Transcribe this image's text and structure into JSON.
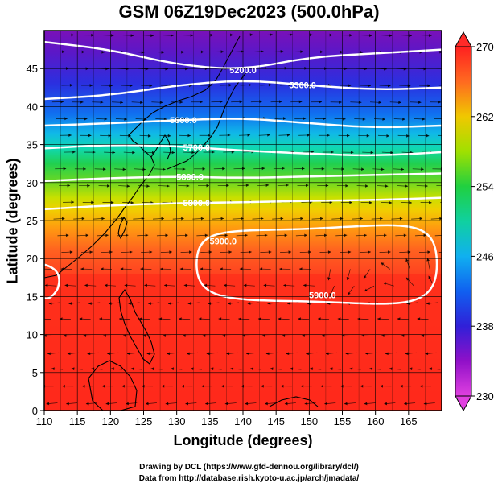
{
  "title": "GSM 06Z19Dec2023 (500.0hPa)",
  "chart_data": {
    "type": "heatmap",
    "title": "GSM 06Z19Dec2023 (500.0hPa)",
    "xlabel": "Longitude (degrees)",
    "ylabel": "Latitude  (degrees)",
    "xlim": [
      110,
      170
    ],
    "ylim": [
      0,
      50
    ],
    "x_ticks": [
      "110",
      "115",
      "120",
      "125",
      "130",
      "135",
      "140",
      "145",
      "150",
      "155",
      "160",
      "165"
    ],
    "x_tick_values": [
      110,
      115,
      120,
      125,
      130,
      135,
      140,
      145,
      150,
      155,
      160,
      165
    ],
    "y_ticks": [
      "0",
      "5",
      "10",
      "15",
      "20",
      "25",
      "30",
      "35",
      "40",
      "45"
    ],
    "y_tick_values": [
      0,
      5,
      10,
      15,
      20,
      25,
      30,
      35,
      40,
      45
    ],
    "grid": true,
    "colorbar": {
      "labels": [
        "270",
        "262",
        "254",
        "246",
        "238",
        "230"
      ],
      "values": [
        270,
        262,
        254,
        246,
        238,
        230
      ],
      "range": [
        230,
        270
      ],
      "colors_low_to_high": [
        "#e040e0",
        "#8800c8",
        "#2020e0",
        "#0090ff",
        "#00d0d0",
        "#00d040",
        "#80e000",
        "#e0e000",
        "#ff9000",
        "#ff4020",
        "#ff2020"
      ]
    },
    "contours": [
      {
        "label": "5200.0",
        "lat_at_lon": [
          [
            110,
            48.5
          ],
          [
            120,
            47.5
          ],
          [
            130,
            45.5
          ],
          [
            140,
            44.8
          ],
          [
            150,
            46.5
          ],
          [
            160,
            47.0
          ],
          [
            170,
            47.5
          ]
        ]
      },
      {
        "label": "5300.0",
        "lat_at_lon": [
          [
            110,
            41.0
          ],
          [
            120,
            41.5
          ],
          [
            130,
            42.8
          ],
          [
            140,
            43.5
          ],
          [
            150,
            42.8
          ],
          [
            160,
            42.2
          ],
          [
            170,
            42.5
          ]
        ]
      },
      {
        "label": "5600.0",
        "lat_at_lon": [
          [
            110,
            37.5
          ],
          [
            120,
            37.8
          ],
          [
            130,
            38.2
          ],
          [
            140,
            38.5
          ],
          [
            150,
            37.8
          ],
          [
            160,
            37.2
          ],
          [
            170,
            37.5
          ]
        ]
      },
      {
        "label": "5700.0",
        "lat_at_lon": [
          [
            110,
            34.5
          ],
          [
            120,
            35.0
          ],
          [
            130,
            34.8
          ],
          [
            140,
            34.2
          ],
          [
            150,
            33.8
          ],
          [
            160,
            33.5
          ],
          [
            170,
            34.0
          ]
        ]
      },
      {
        "label": "5800.0",
        "lat_at_lon": [
          [
            110,
            30.2
          ],
          [
            120,
            30.6
          ],
          [
            130,
            30.8
          ],
          [
            140,
            30.6
          ],
          [
            150,
            30.8
          ],
          [
            160,
            31.0
          ],
          [
            170,
            31.2
          ]
        ]
      },
      {
        "label": "5800.0",
        "lat_at_lon": [
          [
            110,
            26.5
          ],
          [
            120,
            27.0
          ],
          [
            130,
            27.3
          ],
          [
            140,
            27.4
          ],
          [
            150,
            27.6
          ],
          [
            160,
            27.7
          ],
          [
            170,
            28.0
          ]
        ]
      }
    ],
    "closed_contour": {
      "label": "5900.0",
      "lon_range": [
        133,
        170
      ],
      "lat_range": [
        14,
        24.5
      ]
    },
    "field": "temperature (K) at 500.0hPa with wind streamlines"
  },
  "credits": {
    "line1": "Drawing by DCL (https://www.gfd-dennou.org/library/dcl/)",
    "line2": "Data from http://database.rish.kyoto-u.ac.jp/arch/jmadata/"
  }
}
